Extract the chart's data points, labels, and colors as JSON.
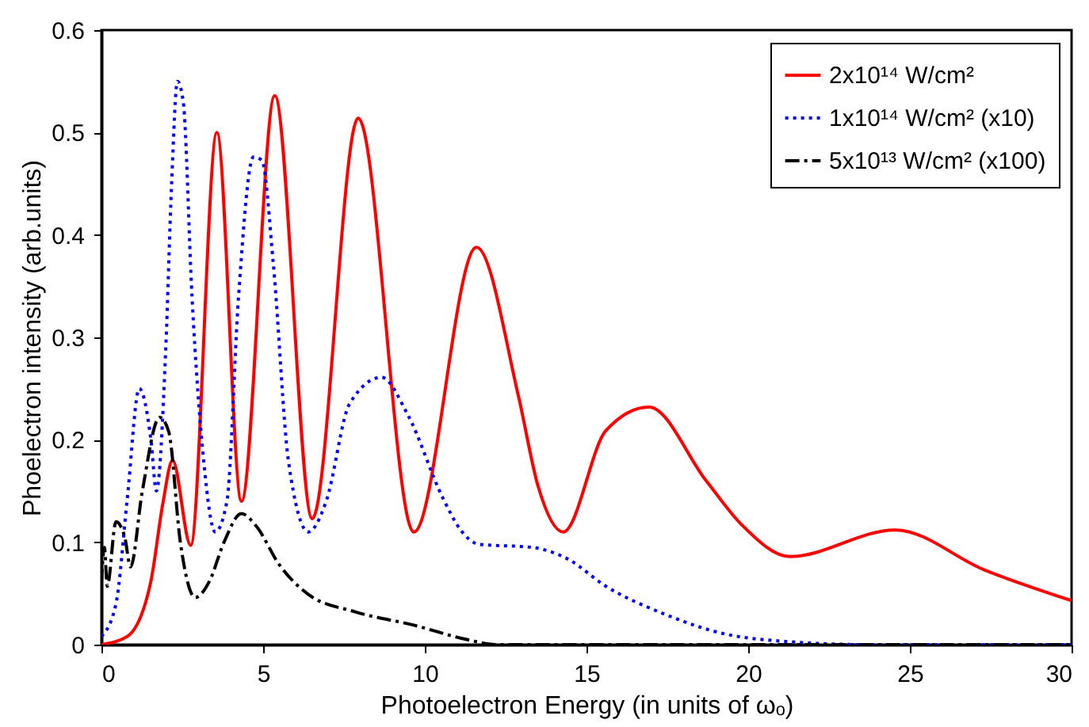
{
  "chart_data": {
    "type": "line",
    "xlabel": "Photoelectron Energy (in units of ωₒ)",
    "ylabel": "Phoelectron intensity (arb.units)",
    "xlim": [
      0,
      30
    ],
    "xticks": [
      0,
      5,
      10,
      15,
      20,
      25,
      30
    ],
    "ylim": [
      0,
      0.6
    ],
    "yticks": [
      0,
      0.1,
      0.2,
      0.3,
      0.4,
      0.5,
      0.6
    ],
    "grid": false,
    "legend": "top right",
    "series": [
      {
        "name": "2x10¹⁴ W/cm²",
        "color": "#ff0000",
        "line_style": "solid",
        "x": [
          0,
          0.8,
          1.53,
          1.9,
          2.2,
          2.76,
          3.57,
          4.33,
          5.36,
          6.52,
          7.94,
          9.66,
          11.6,
          12.9,
          13.5,
          14.28,
          15.6,
          16.93,
          18.7,
          19.8,
          21.3,
          24.55,
          27.3,
          30
        ],
        "values": [
          0,
          0.008,
          0.062,
          0.138,
          0.18,
          0.097,
          0.5,
          0.14,
          0.536,
          0.123,
          0.514,
          0.11,
          0.388,
          0.242,
          0.155,
          0.11,
          0.209,
          0.232,
          0.16,
          0.117,
          0.086,
          0.112,
          0.073,
          0.043
        ]
      },
      {
        "name": "1x10¹⁴ W/cm² (x10)",
        "color": "#0000ff",
        "line_style": "dotted",
        "x": [
          0,
          0.45,
          0.8,
          1.17,
          1.53,
          1.7,
          1.99,
          2.17,
          2.35,
          2.53,
          2.8,
          3.16,
          3.52,
          3.88,
          4.24,
          4.7,
          4.96,
          5.32,
          5.78,
          6.4,
          6.95,
          7.67,
          8.66,
          9.48,
          10.56,
          11.13,
          11.67,
          13.3,
          14.4,
          15.6,
          17.4,
          19.2,
          21.2,
          23.7,
          30
        ],
        "values": [
          0.008,
          0.04,
          0.143,
          0.25,
          0.2,
          0.15,
          0.29,
          0.45,
          0.55,
          0.53,
          0.34,
          0.18,
          0.11,
          0.14,
          0.34,
          0.476,
          0.473,
          0.37,
          0.18,
          0.11,
          0.14,
          0.235,
          0.261,
          0.224,
          0.143,
          0.111,
          0.098,
          0.095,
          0.084,
          0.057,
          0.03,
          0.011,
          0.003,
          0,
          0
        ]
      },
      {
        "name": "5x10¹³ W/cm² (x100)",
        "color": "#000000",
        "line_style": "dashed",
        "x": [
          0,
          0.09,
          0.18,
          0.45,
          0.72,
          0.9,
          1.26,
          1.8,
          2.08,
          2.44,
          2.9,
          3.34,
          3.79,
          4.33,
          4.78,
          5.5,
          6.4,
          7.85,
          9.66,
          11.3,
          12.2,
          30
        ],
        "values": [
          0.06,
          0.095,
          0.057,
          0.12,
          0.105,
          0.076,
          0.149,
          0.222,
          0.208,
          0.1,
          0.046,
          0.062,
          0.1,
          0.128,
          0.116,
          0.078,
          0.049,
          0.032,
          0.019,
          0.005,
          0,
          0
        ]
      }
    ]
  }
}
